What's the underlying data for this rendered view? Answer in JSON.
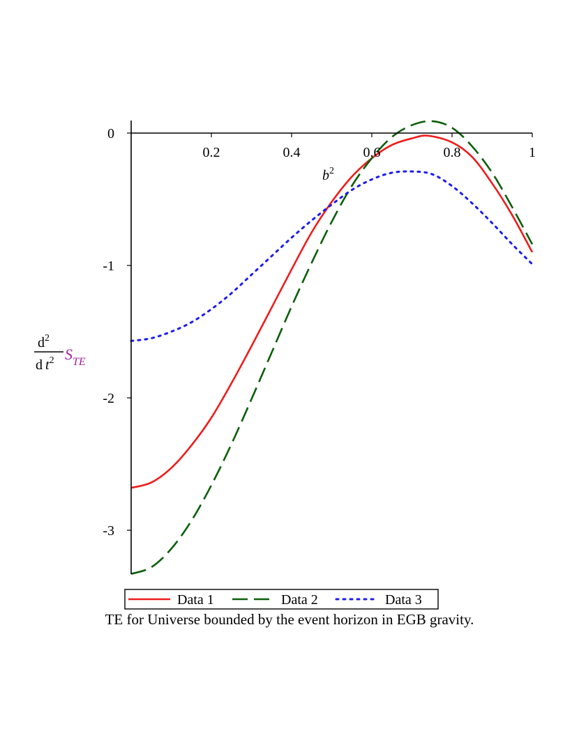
{
  "chart_data": {
    "type": "line",
    "title": "",
    "caption": "TE for Universe bounded by the event horizon in EGB gravity.",
    "xlabel": {
      "base": "b",
      "sup": "2"
    },
    "ylabel": {
      "num_d": "d",
      "num_sup": "2",
      "den_d": "d",
      "den_t": "t",
      "den_sup": "2",
      "s": "S",
      "s_sub": "TE"
    },
    "xlim": [
      0,
      1
    ],
    "ylim": [
      -3.35,
      0.1
    ],
    "xticks": [
      0.2,
      0.4,
      0.6,
      0.8,
      1
    ],
    "xtick_labels": [
      "0.2",
      "0.4",
      "0.6",
      "0.8",
      "1"
    ],
    "yticks": [
      0,
      -1,
      -2,
      -3
    ],
    "ytick_labels": [
      "0",
      "-1",
      "-2",
      "-3"
    ],
    "legend_position": "bottom",
    "series": [
      {
        "name": "Data 1",
        "color": "#ee1c1c",
        "style": "solid",
        "x": [
          0,
          0.05,
          0.1,
          0.15,
          0.2,
          0.25,
          0.3,
          0.35,
          0.4,
          0.45,
          0.5,
          0.55,
          0.6,
          0.65,
          0.7,
          0.74,
          0.8,
          0.85,
          0.9,
          0.95,
          1
        ],
        "y": [
          -2.68,
          -2.64,
          -2.53,
          -2.36,
          -2.15,
          -1.89,
          -1.61,
          -1.32,
          -1.03,
          -0.75,
          -0.52,
          -0.33,
          -0.19,
          -0.09,
          -0.04,
          -0.02,
          -0.07,
          -0.18,
          -0.38,
          -0.62,
          -0.9
        ]
      },
      {
        "name": "Data 2",
        "color": "#0b5f0b",
        "style": "dashed",
        "x": [
          0,
          0.05,
          0.1,
          0.15,
          0.2,
          0.25,
          0.3,
          0.35,
          0.4,
          0.45,
          0.5,
          0.55,
          0.6,
          0.65,
          0.7,
          0.75,
          0.8,
          0.85,
          0.9,
          0.95,
          1
        ],
        "y": [
          -3.33,
          -3.28,
          -3.14,
          -2.93,
          -2.66,
          -2.35,
          -2.01,
          -1.66,
          -1.31,
          -0.98,
          -0.67,
          -0.4,
          -0.19,
          -0.03,
          0.06,
          0.09,
          0.04,
          -0.1,
          -0.3,
          -0.56,
          -0.84
        ]
      },
      {
        "name": "Data 3",
        "color": "#1c1cee",
        "style": "dotted",
        "x": [
          0,
          0.05,
          0.1,
          0.15,
          0.2,
          0.25,
          0.3,
          0.35,
          0.4,
          0.45,
          0.5,
          0.55,
          0.6,
          0.65,
          0.7,
          0.75,
          0.8,
          0.85,
          0.9,
          0.95,
          1
        ],
        "y": [
          -1.57,
          -1.55,
          -1.5,
          -1.43,
          -1.33,
          -1.21,
          -1.07,
          -0.93,
          -0.79,
          -0.66,
          -0.54,
          -0.43,
          -0.35,
          -0.3,
          -0.29,
          -0.31,
          -0.4,
          -0.53,
          -0.68,
          -0.84,
          -0.99
        ]
      }
    ]
  }
}
